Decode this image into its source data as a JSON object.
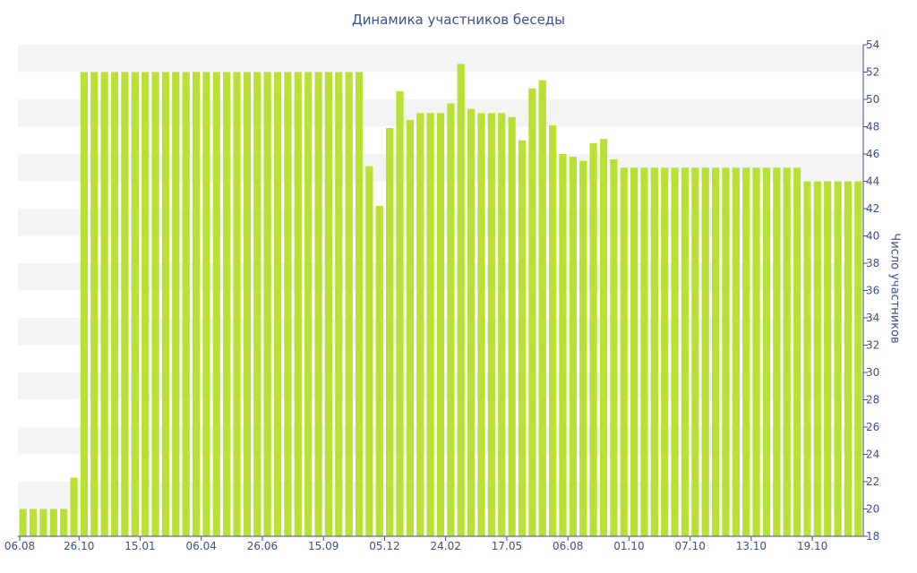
{
  "chart_data": {
    "type": "bar",
    "title": "Динамика участников беседы",
    "ylabel": "Число участников",
    "ylim": [
      18,
      54
    ],
    "yticks": [
      18,
      20,
      22,
      24,
      26,
      28,
      30,
      32,
      34,
      36,
      38,
      40,
      42,
      44,
      46,
      48,
      50,
      52,
      54
    ],
    "x_tick_labels": [
      "06.08",
      "26.10",
      "15.01",
      "06.04",
      "26.06",
      "15.09",
      "05.12",
      "24.02",
      "17.05",
      "06.08",
      "01.10",
      "07.10",
      "13.10",
      "19.10"
    ],
    "bar_color": "#b9e034",
    "band_color": "#f4f4f4",
    "values": [
      20,
      20,
      20,
      20,
      20,
      22.3,
      52,
      52,
      52,
      52,
      52,
      52,
      52,
      52,
      52,
      52,
      52,
      52,
      52,
      52,
      52,
      52,
      52,
      52,
      52,
      52,
      52,
      52,
      52,
      52,
      52,
      52,
      52,
      52,
      45.1,
      42.2,
      47.9,
      50.6,
      48.5,
      49,
      49,
      49,
      49.7,
      52.6,
      49.3,
      49,
      49,
      49,
      48.7,
      47,
      50.8,
      51.4,
      48.1,
      46,
      45.8,
      45.5,
      46.8,
      47.1,
      45.6,
      45,
      45,
      45,
      45,
      45,
      45,
      45,
      45,
      45,
      45,
      45,
      45,
      45,
      45,
      45,
      45,
      45,
      45,
      44,
      44,
      44,
      44,
      44,
      44
    ]
  }
}
